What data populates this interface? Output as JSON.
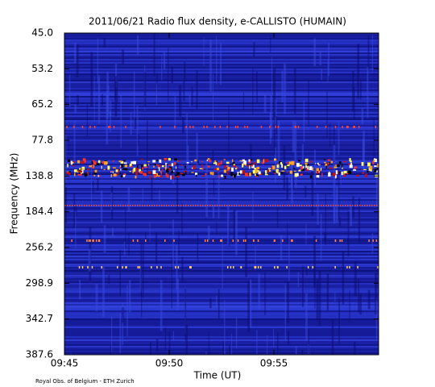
{
  "chart_data": {
    "type": "spectrogram",
    "title": "2011/06/21  Radio flux density, e-CALLISTO (HUMAIN)",
    "xlabel": "Time (UT)",
    "ylabel": "Frequency (MHz)",
    "x_tick_labels": [
      "09:45",
      "09:50",
      "09:55"
    ],
    "y_tick_labels": [
      "45.0",
      "53.2",
      "65.2",
      "77.8",
      "138.8",
      "184.4",
      "256.2",
      "298.9",
      "342.7",
      "387.6"
    ],
    "credit": "Royal Obs. of Belgium - ETH Zurich"
  }
}
